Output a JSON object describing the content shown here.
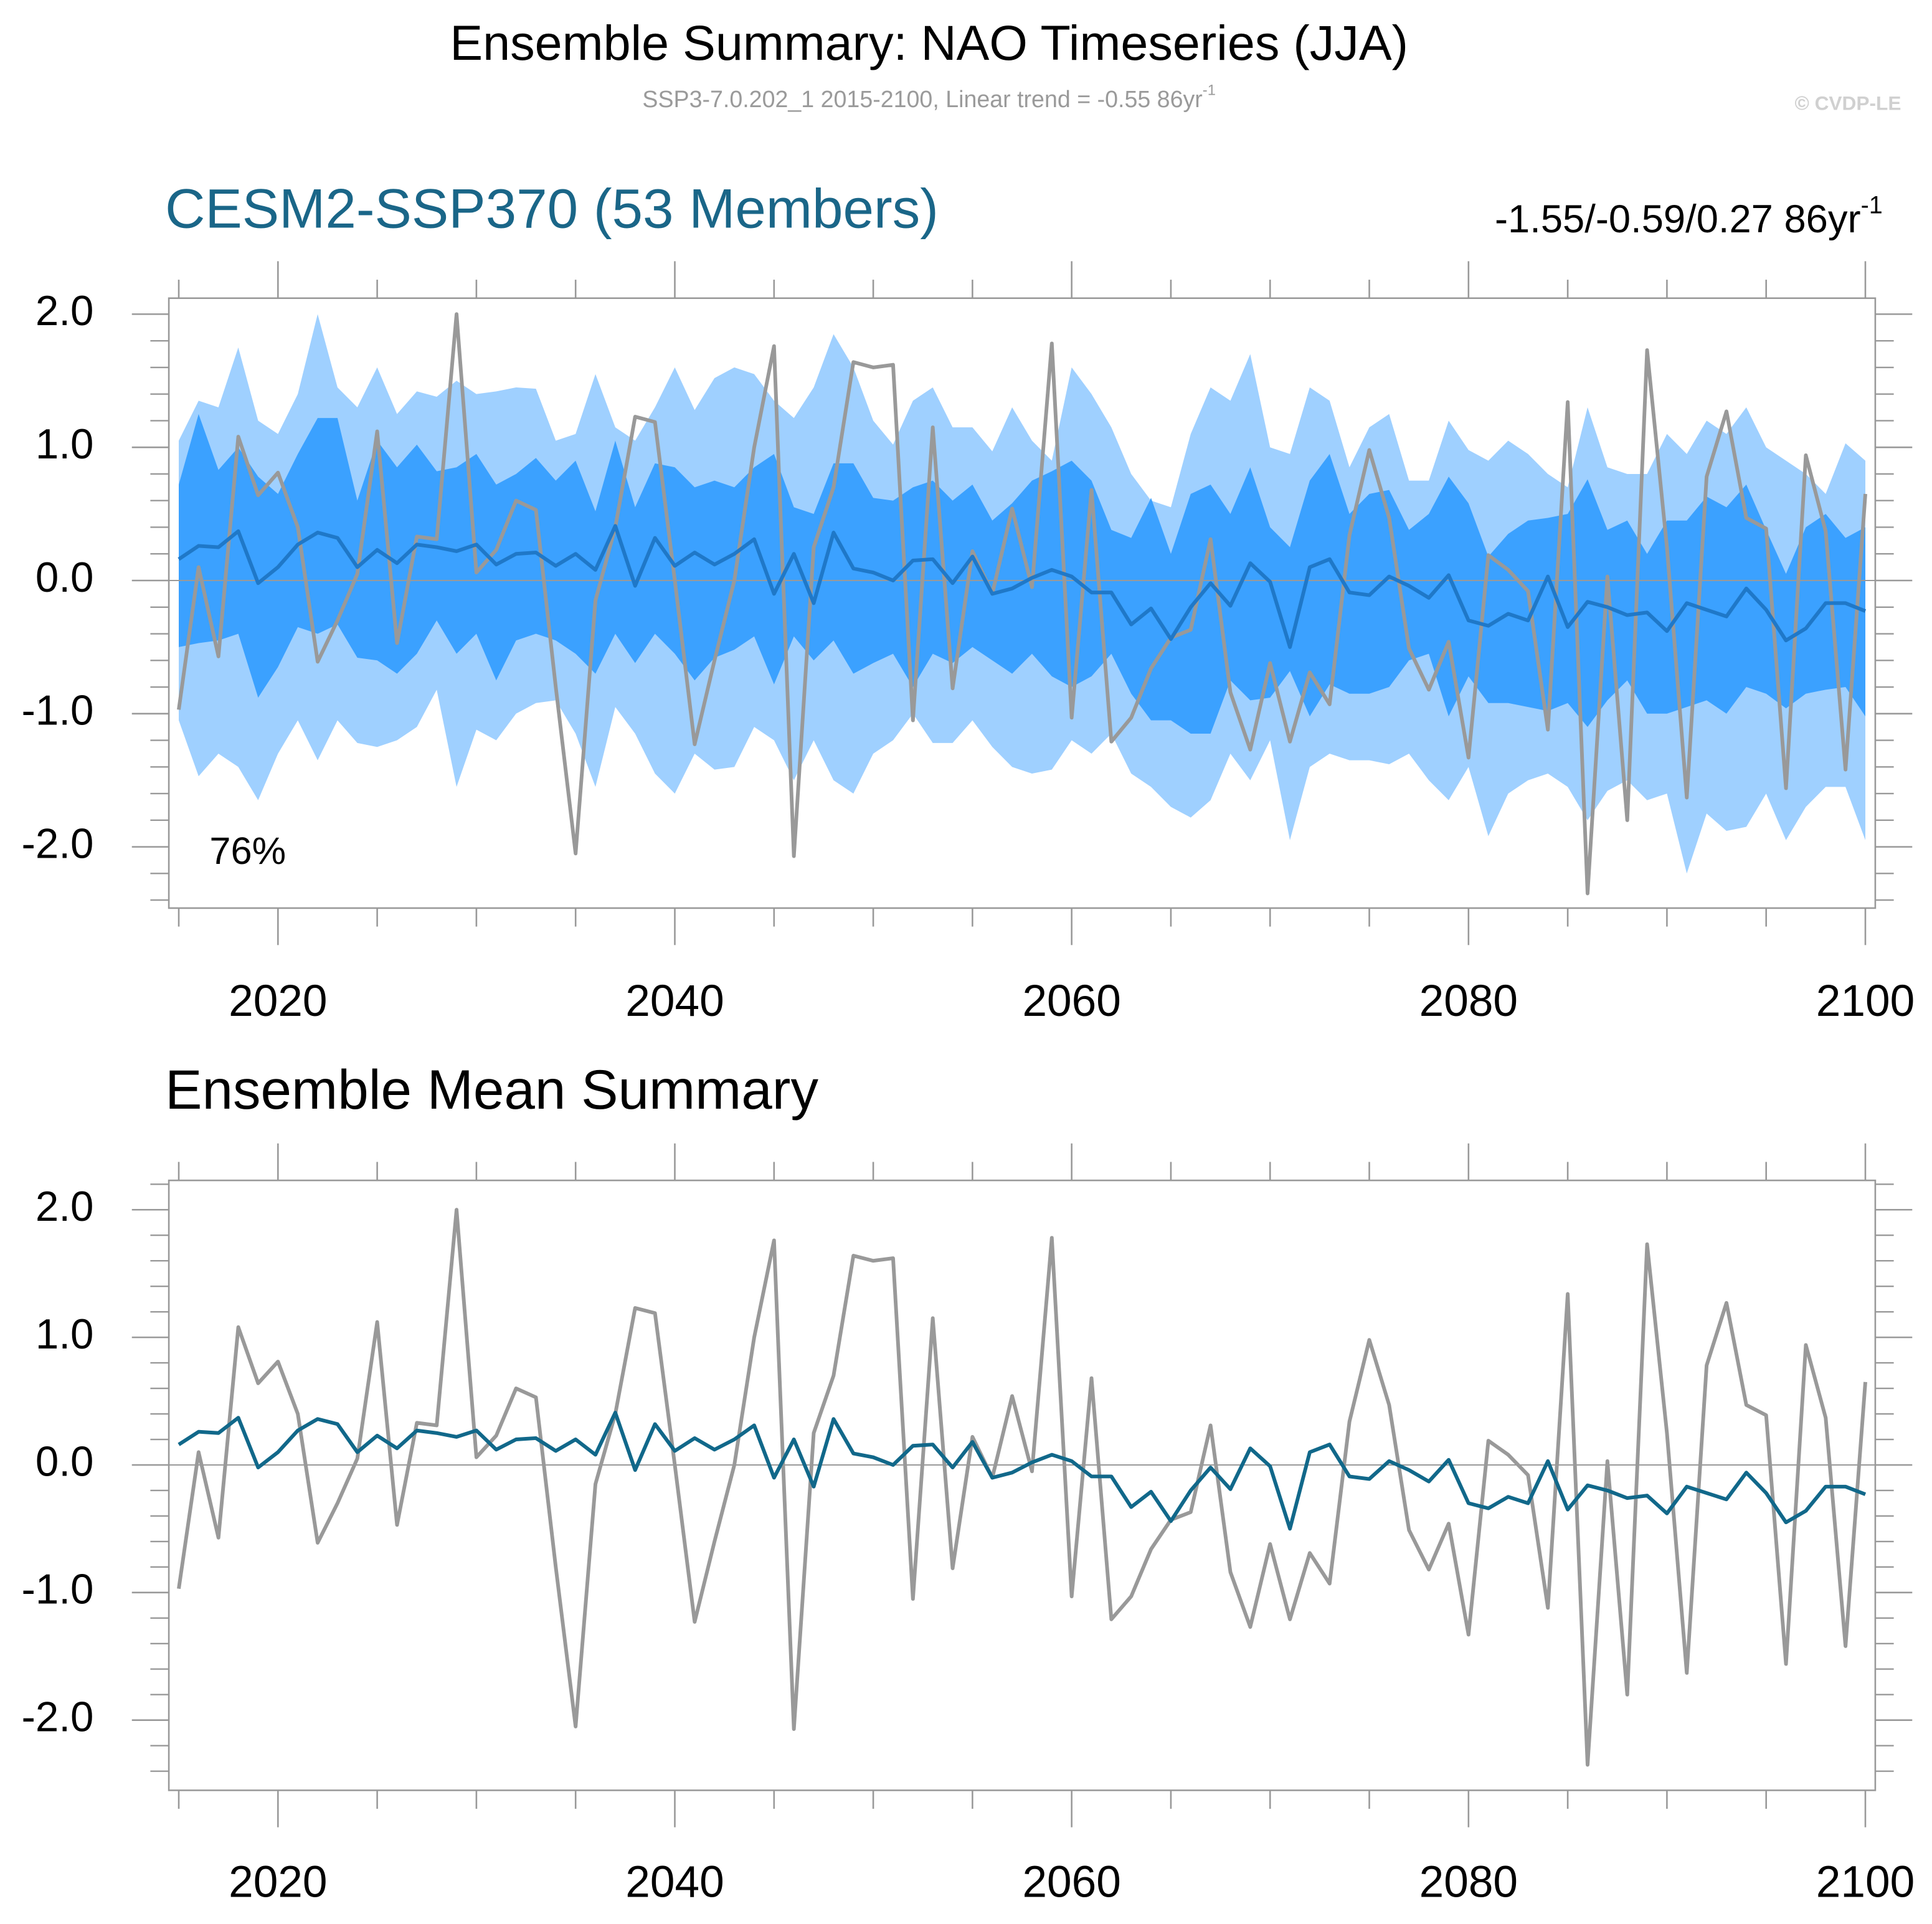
{
  "title": "Ensemble Summary: NAO Timeseries (JJA)",
  "subtitle": "SSP3-7.0.202_1 2015-2100, Linear trend = -0.55 86yr",
  "subtitle_sup": "-1",
  "credit": "© CVDP-LE",
  "chart_data": [
    {
      "type": "line",
      "title": "CESM2-SSP370 (53 Members)",
      "title_color": "#1a6688",
      "annotation": "-1.55/-0.59/0.27 86yr",
      "annotation_sup": "-1",
      "percent_label": "76%",
      "x": [
        2015,
        2016,
        2017,
        2018,
        2019,
        2020,
        2021,
        2022,
        2023,
        2024,
        2025,
        2026,
        2027,
        2028,
        2029,
        2030,
        2031,
        2032,
        2033,
        2034,
        2035,
        2036,
        2037,
        2038,
        2039,
        2040,
        2041,
        2042,
        2043,
        2044,
        2045,
        2046,
        2047,
        2048,
        2049,
        2050,
        2051,
        2052,
        2053,
        2054,
        2055,
        2056,
        2057,
        2058,
        2059,
        2060,
        2061,
        2062,
        2063,
        2064,
        2065,
        2066,
        2067,
        2068,
        2069,
        2070,
        2071,
        2072,
        2073,
        2074,
        2075,
        2076,
        2077,
        2078,
        2079,
        2080,
        2081,
        2082,
        2083,
        2084,
        2085,
        2086,
        2087,
        2088,
        2089,
        2090,
        2091,
        2092,
        2093,
        2094,
        2095,
        2096,
        2097,
        2098,
        2099,
        2100
      ],
      "xlim": [
        2014.5,
        2100.5
      ],
      "xticks": [
        2020,
        2040,
        2060,
        2080,
        2100
      ],
      "xminorticks": [
        2015,
        2025,
        2030,
        2035,
        2045,
        2050,
        2055,
        2065,
        2070,
        2075,
        2085,
        2090,
        2095
      ],
      "ylim": [
        -2.46,
        2.12
      ],
      "yticks": [
        {
          "value": 2,
          "label": "2.0"
        },
        {
          "value": 1,
          "label": "1.0"
        },
        {
          "value": 0,
          "label": "0.0"
        },
        {
          "value": -1,
          "label": "-1.0"
        },
        {
          "value": -2,
          "label": "-2.0"
        }
      ],
      "yminorticks": [
        -2.4,
        -2.2,
        -1.8,
        -1.6,
        -1.4,
        -1.2,
        -0.8,
        -0.6,
        -0.4,
        -0.2,
        0.2,
        0.4,
        0.6,
        0.8,
        1.2,
        1.4,
        1.6,
        1.8
      ],
      "refline": 0,
      "bands": [
        {
          "color": "#9fd0ff",
          "upper": [
            1.05,
            1.35,
            1.3,
            1.75,
            1.2,
            1.1,
            1.4,
            2.0,
            1.45,
            1.3,
            1.6,
            1.25,
            1.42,
            1.38,
            1.5,
            1.4,
            1.42,
            1.45,
            1.44,
            1.05,
            1.1,
            1.55,
            1.15,
            1.05,
            1.3,
            1.6,
            1.28,
            1.52,
            1.6,
            1.55,
            1.35,
            1.22,
            1.45,
            1.85,
            1.6,
            1.2,
            1.02,
            1.35,
            1.45,
            1.15,
            1.15,
            0.97,
            1.3,
            1.05,
            0.9,
            1.6,
            1.4,
            1.15,
            0.8,
            0.6,
            0.55,
            1.1,
            1.45,
            1.35,
            1.7,
            1.0,
            0.95,
            1.45,
            1.35,
            0.85,
            1.15,
            1.25,
            0.75,
            0.75,
            1.2,
            0.98,
            0.9,
            1.05,
            0.95,
            0.8,
            0.7,
            1.3,
            0.85,
            0.8,
            0.8,
            1.1,
            0.95,
            1.2,
            1.1,
            1.3,
            1.0,
            0.9,
            0.8,
            0.65,
            1.03,
            0.9
          ],
          "lower": [
            -1.05,
            -1.47,
            -1.3,
            -1.4,
            -1.65,
            -1.3,
            -1.05,
            -1.35,
            -1.05,
            -1.22,
            -1.25,
            -1.2,
            -1.1,
            -0.82,
            -1.55,
            -1.12,
            -1.2,
            -1.0,
            -0.92,
            -0.9,
            -1.15,
            -1.55,
            -0.95,
            -1.15,
            -1.45,
            -1.6,
            -1.3,
            -1.42,
            -1.4,
            -1.1,
            -1.2,
            -1.5,
            -1.2,
            -1.5,
            -1.6,
            -1.3,
            -1.2,
            -1.0,
            -1.22,
            -1.22,
            -1.05,
            -1.25,
            -1.4,
            -1.45,
            -1.42,
            -1.2,
            -1.3,
            -1.15,
            -1.45,
            -1.55,
            -1.7,
            -1.78,
            -1.65,
            -1.3,
            -1.5,
            -1.2,
            -1.95,
            -1.4,
            -1.3,
            -1.35,
            -1.35,
            -1.38,
            -1.3,
            -1.5,
            -1.65,
            -1.4,
            -1.92,
            -1.6,
            -1.5,
            -1.45,
            -1.55,
            -1.8,
            -1.58,
            -1.5,
            -1.65,
            -1.6,
            -2.2,
            -1.75,
            -1.88,
            -1.85,
            -1.6,
            -1.95,
            -1.7,
            -1.55,
            -1.55,
            -1.95
          ]
        },
        {
          "color": "#3ba1ff",
          "upper": [
            0.72,
            1.25,
            0.83,
            1.0,
            0.78,
            0.65,
            0.95,
            1.22,
            1.22,
            0.6,
            1.05,
            0.85,
            1.02,
            0.82,
            0.85,
            0.95,
            0.72,
            0.8,
            0.92,
            0.75,
            0.9,
            0.52,
            1.05,
            0.55,
            0.88,
            0.85,
            0.7,
            0.75,
            0.7,
            0.85,
            0.95,
            0.55,
            0.5,
            0.88,
            0.88,
            0.62,
            0.6,
            0.7,
            0.75,
            0.6,
            0.72,
            0.45,
            0.58,
            0.75,
            0.82,
            0.9,
            0.75,
            0.38,
            0.32,
            0.62,
            0.2,
            0.65,
            0.72,
            0.5,
            0.85,
            0.4,
            0.25,
            0.75,
            0.95,
            0.5,
            0.65,
            0.68,
            0.38,
            0.5,
            0.78,
            0.58,
            0.18,
            0.35,
            0.45,
            0.47,
            0.5,
            0.76,
            0.38,
            0.45,
            0.2,
            0.45,
            0.45,
            0.63,
            0.55,
            0.72,
            0.38,
            0.05,
            0.4,
            0.5,
            0.32,
            0.4
          ],
          "lower": [
            -0.5,
            -0.47,
            -0.45,
            -0.4,
            -0.88,
            -0.65,
            -0.35,
            -0.4,
            -0.33,
            -0.58,
            -0.6,
            -0.7,
            -0.55,
            -0.3,
            -0.55,
            -0.4,
            -0.75,
            -0.45,
            -0.4,
            -0.45,
            -0.55,
            -0.7,
            -0.4,
            -0.62,
            -0.4,
            -0.55,
            -0.75,
            -0.58,
            -0.52,
            -0.42,
            -0.78,
            -0.42,
            -0.6,
            -0.45,
            -0.7,
            -0.62,
            -0.55,
            -0.8,
            -0.55,
            -0.62,
            -0.5,
            -0.6,
            -0.7,
            -0.55,
            -0.72,
            -0.8,
            -0.72,
            -0.55,
            -0.85,
            -1.05,
            -1.05,
            -1.15,
            -1.15,
            -0.75,
            -0.9,
            -0.88,
            -0.68,
            -1.02,
            -0.78,
            -0.85,
            -0.85,
            -0.8,
            -0.6,
            -0.55,
            -1.02,
            -0.72,
            -0.92,
            -0.92,
            -0.95,
            -0.98,
            -0.92,
            -1.1,
            -0.9,
            -0.75,
            -1.0,
            -1.0,
            -0.95,
            -0.9,
            -1.0,
            -0.8,
            -0.85,
            -0.96,
            -0.85,
            -0.82,
            -0.8,
            -1.02
          ]
        }
      ],
      "series": [
        {
          "color": "#999999",
          "values": [
            -0.97,
            0.1,
            -0.57,
            1.08,
            0.64,
            0.81,
            0.4,
            -0.61,
            -0.3,
            0.05,
            1.12,
            -0.47,
            0.33,
            0.31,
            2.0,
            0.06,
            0.23,
            0.6,
            0.53,
            -0.8,
            -2.05,
            -0.15,
            0.4,
            1.23,
            1.19,
            0.0,
            -1.23,
            -0.6,
            0.0,
            1.0,
            1.76,
            -2.07,
            0.25,
            0.7,
            1.64,
            1.6,
            1.62,
            -1.05,
            1.15,
            -0.81,
            0.22,
            -0.1,
            0.54,
            -0.05,
            1.78,
            -1.03,
            0.68,
            -1.21,
            -1.03,
            -0.66,
            -0.43,
            -0.37,
            0.31,
            -0.84,
            -1.27,
            -0.62,
            -1.21,
            -0.69,
            -0.93,
            0.34,
            0.98,
            0.47,
            -0.51,
            -0.82,
            -0.46,
            -1.33,
            0.19,
            0.08,
            -0.08,
            -1.12,
            1.34,
            -2.35,
            0.03,
            -1.8,
            1.73,
            0.25,
            -1.63,
            0.78,
            1.27,
            0.47,
            0.39,
            -1.56,
            0.94,
            0.37,
            -1.42,
            0.65
          ]
        },
        {
          "color": "#1f78c8",
          "values": [
            0.16,
            0.26,
            0.25,
            0.37,
            -0.02,
            0.1,
            0.27,
            0.36,
            0.32,
            0.1,
            0.23,
            0.13,
            0.27,
            0.25,
            0.22,
            0.27,
            0.12,
            0.2,
            0.21,
            0.11,
            0.2,
            0.08,
            0.41,
            -0.04,
            0.32,
            0.11,
            0.21,
            0.12,
            0.2,
            0.31,
            -0.1,
            0.2,
            -0.17,
            0.36,
            0.09,
            0.06,
            0.0,
            0.15,
            0.16,
            -0.02,
            0.18,
            -0.1,
            -0.06,
            0.02,
            0.08,
            0.03,
            -0.09,
            -0.09,
            -0.33,
            -0.21,
            -0.44,
            -0.2,
            -0.02,
            -0.19,
            0.13,
            -0.01,
            -0.5,
            0.1,
            0.16,
            -0.09,
            -0.11,
            0.03,
            -0.04,
            -0.13,
            0.04,
            -0.3,
            -0.34,
            -0.25,
            -0.3,
            0.03,
            -0.35,
            -0.16,
            -0.2,
            -0.26,
            -0.24,
            -0.38,
            -0.17,
            -0.22,
            -0.27,
            -0.06,
            -0.22,
            -0.45,
            -0.36,
            -0.17,
            -0.17,
            -0.23
          ]
        }
      ]
    },
    {
      "type": "line",
      "title": "Ensemble Mean Summary",
      "title_color": "#000000",
      "x": [
        2015,
        2016,
        2017,
        2018,
        2019,
        2020,
        2021,
        2022,
        2023,
        2024,
        2025,
        2026,
        2027,
        2028,
        2029,
        2030,
        2031,
        2032,
        2033,
        2034,
        2035,
        2036,
        2037,
        2038,
        2039,
        2040,
        2041,
        2042,
        2043,
        2044,
        2045,
        2046,
        2047,
        2048,
        2049,
        2050,
        2051,
        2052,
        2053,
        2054,
        2055,
        2056,
        2057,
        2058,
        2059,
        2060,
        2061,
        2062,
        2063,
        2064,
        2065,
        2066,
        2067,
        2068,
        2069,
        2070,
        2071,
        2072,
        2073,
        2074,
        2075,
        2076,
        2077,
        2078,
        2079,
        2080,
        2081,
        2082,
        2083,
        2084,
        2085,
        2086,
        2087,
        2088,
        2089,
        2090,
        2091,
        2092,
        2093,
        2094,
        2095,
        2096,
        2097,
        2098,
        2099,
        2100
      ],
      "xlim": [
        2014.5,
        2100.5
      ],
      "xticks": [
        2020,
        2040,
        2060,
        2080,
        2100
      ],
      "xminorticks": [
        2015,
        2025,
        2030,
        2035,
        2045,
        2050,
        2055,
        2065,
        2070,
        2075,
        2085,
        2090,
        2095
      ],
      "ylim": [
        -2.55,
        2.23
      ],
      "yticks": [
        {
          "value": 2,
          "label": "2.0"
        },
        {
          "value": 1,
          "label": "1.0"
        },
        {
          "value": 0,
          "label": "0.0"
        },
        {
          "value": -1,
          "label": "-1.0"
        },
        {
          "value": -2,
          "label": "-2.0"
        }
      ],
      "yminorticks": [
        -2.4,
        -2.2,
        -1.8,
        -1.6,
        -1.4,
        -1.2,
        -0.8,
        -0.6,
        -0.4,
        -0.2,
        0.2,
        0.4,
        0.6,
        0.8,
        1.2,
        1.4,
        1.6,
        1.8,
        2.2
      ],
      "refline": 0,
      "series": [
        {
          "color": "#999999",
          "values": [
            -0.97,
            0.1,
            -0.57,
            1.08,
            0.64,
            0.81,
            0.4,
            -0.61,
            -0.3,
            0.05,
            1.12,
            -0.47,
            0.33,
            0.31,
            2.0,
            0.06,
            0.23,
            0.6,
            0.53,
            -0.8,
            -2.05,
            -0.15,
            0.4,
            1.23,
            1.19,
            0.0,
            -1.23,
            -0.6,
            0.0,
            1.0,
            1.76,
            -2.07,
            0.25,
            0.7,
            1.64,
            1.6,
            1.62,
            -1.05,
            1.15,
            -0.81,
            0.22,
            -0.1,
            0.54,
            -0.05,
            1.78,
            -1.03,
            0.68,
            -1.21,
            -1.03,
            -0.66,
            -0.43,
            -0.37,
            0.31,
            -0.84,
            -1.27,
            -0.62,
            -1.21,
            -0.69,
            -0.93,
            0.34,
            0.98,
            0.47,
            -0.51,
            -0.82,
            -0.46,
            -1.33,
            0.19,
            0.08,
            -0.08,
            -1.12,
            1.34,
            -2.35,
            0.03,
            -1.8,
            1.73,
            0.25,
            -1.63,
            0.78,
            1.27,
            0.47,
            0.39,
            -1.56,
            0.94,
            0.37,
            -1.42,
            0.65
          ]
        },
        {
          "color": "#11688a",
          "values": [
            0.16,
            0.26,
            0.25,
            0.37,
            -0.02,
            0.1,
            0.27,
            0.36,
            0.32,
            0.1,
            0.23,
            0.13,
            0.27,
            0.25,
            0.22,
            0.27,
            0.12,
            0.2,
            0.21,
            0.11,
            0.2,
            0.08,
            0.41,
            -0.04,
            0.32,
            0.11,
            0.21,
            0.12,
            0.2,
            0.31,
            -0.1,
            0.2,
            -0.17,
            0.36,
            0.09,
            0.06,
            0.0,
            0.15,
            0.16,
            -0.02,
            0.18,
            -0.1,
            -0.06,
            0.02,
            0.08,
            0.03,
            -0.09,
            -0.09,
            -0.33,
            -0.21,
            -0.44,
            -0.2,
            -0.02,
            -0.19,
            0.13,
            -0.01,
            -0.5,
            0.1,
            0.16,
            -0.09,
            -0.11,
            0.03,
            -0.04,
            -0.13,
            0.04,
            -0.3,
            -0.34,
            -0.25,
            -0.3,
            0.03,
            -0.35,
            -0.16,
            -0.2,
            -0.26,
            -0.24,
            -0.38,
            -0.17,
            -0.22,
            -0.27,
            -0.06,
            -0.22,
            -0.45,
            -0.36,
            -0.17,
            -0.17,
            -0.23
          ]
        }
      ]
    }
  ]
}
